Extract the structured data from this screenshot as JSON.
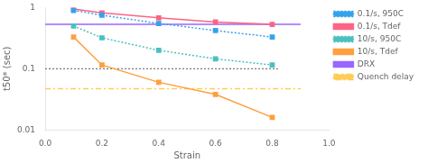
{
  "chart_data": {
    "type": "line",
    "xlabel": "Strain",
    "ylabel": "t50* (sec)",
    "log": "y",
    "grid": false,
    "legend": "right",
    "xlim": [
      0,
      1
    ],
    "ylim": [
      0.01,
      1.0
    ],
    "xticks": [
      {
        "value": 0,
        "label": "0.0"
      },
      0.2,
      0.4,
      0.6,
      0.8,
      {
        "value": 1,
        "label": "1.0"
      }
    ],
    "yticks": [
      0.01,
      0.1,
      1
    ],
    "series": [
      {
        "name": "0.1/s, 950C",
        "x": [
          0.1,
          0.2,
          0.4,
          0.6,
          0.8
        ],
        "values": [
          0.9,
          0.75,
          0.55,
          0.42,
          0.33
        ],
        "line_style": "dotted",
        "marker": "square"
      },
      {
        "name": "0.1/s, Tdef",
        "x": [
          0.1,
          0.2,
          0.4,
          0.6,
          0.8
        ],
        "values": [
          0.95,
          0.82,
          0.68,
          0.58,
          0.53
        ],
        "line_style": "solid",
        "marker": "square"
      },
      {
        "name": "10/s, 950C",
        "x": [
          0.1,
          0.2,
          0.4,
          0.6,
          0.8
        ],
        "values": [
          0.5,
          0.32,
          0.2,
          0.145,
          0.115
        ],
        "line_style": "dotted",
        "marker": "square"
      },
      {
        "name": "10/s, Tdef",
        "x": [
          0.1,
          0.2,
          0.4,
          0.6,
          0.8
        ],
        "values": [
          0.33,
          0.115,
          0.06,
          0.038,
          0.016
        ],
        "line_style": "solid",
        "marker": "square"
      },
      {
        "name": "DRX",
        "x": [
          0.0,
          0.9
        ],
        "values": [
          0.53,
          0.53
        ],
        "line_style": "solid",
        "marker": "none"
      },
      {
        "name": "Quench delay",
        "x": [
          0.0,
          0.9
        ],
        "values": [
          0.047,
          0.047
        ],
        "line_style": "dashdot",
        "marker": "none"
      }
    ],
    "reference_lines": [
      {
        "y": 0.1,
        "x": [
          0,
          0.82
        ],
        "line_style": "dotted"
      }
    ]
  }
}
